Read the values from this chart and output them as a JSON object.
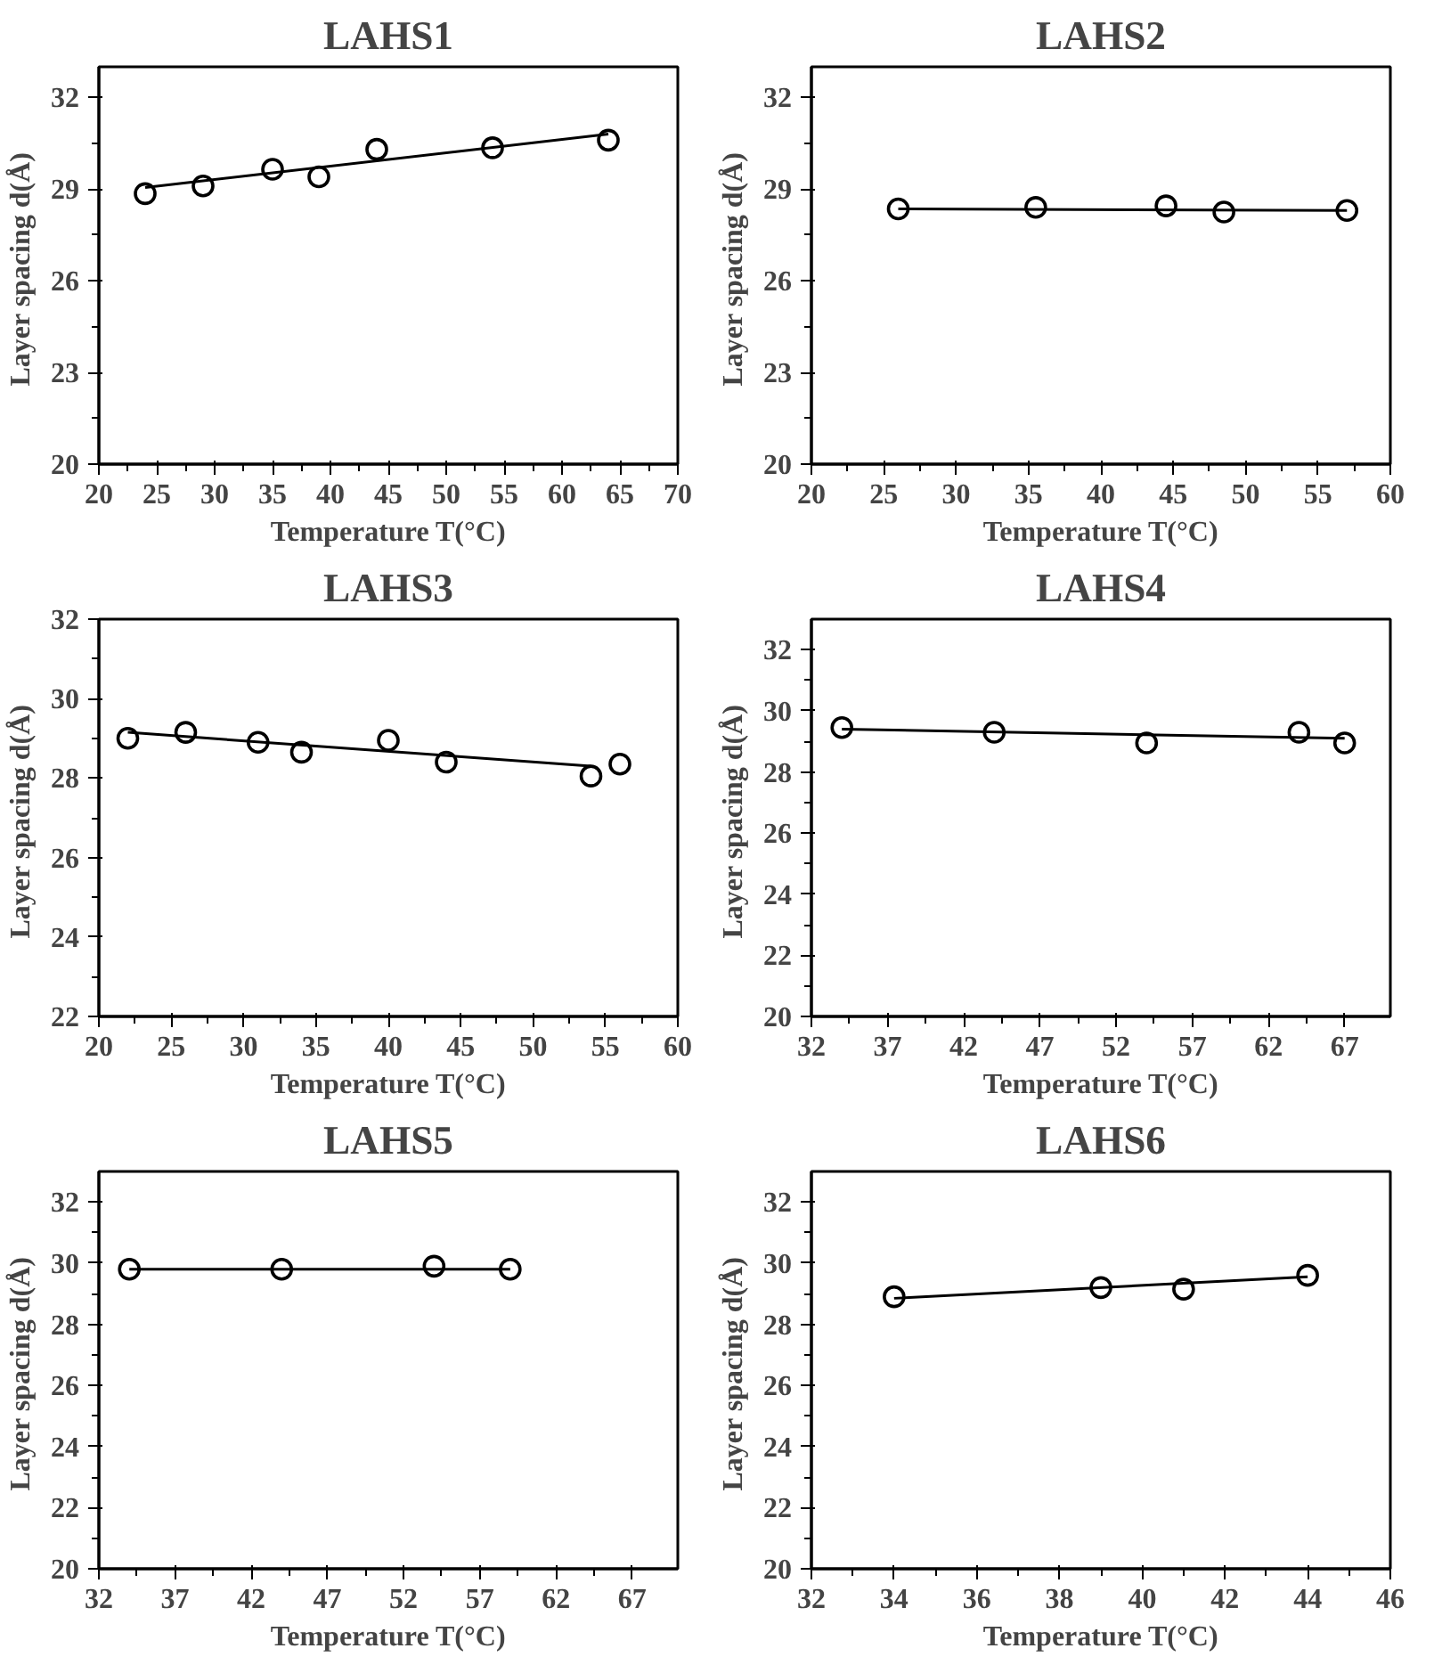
{
  "chart_data": [
    {
      "type": "scatter",
      "title": "LAHS1",
      "xlabel": "Temperature T(°C)",
      "ylabel": "Layer spacing  d(Å)",
      "xlim": [
        20,
        70
      ],
      "xticks": [
        20,
        25,
        30,
        35,
        40,
        45,
        50,
        55,
        60,
        65,
        70
      ],
      "ylim": [
        20,
        33
      ],
      "yticks": [
        20,
        23,
        26,
        29,
        32
      ],
      "grid": false,
      "series": [
        {
          "marker": "circle",
          "color": "#000000",
          "x": [
            24,
            29,
            35,
            39,
            44,
            54,
            64
          ],
          "values": [
            28.85,
            29.1,
            29.65,
            29.4,
            30.3,
            30.35,
            30.6
          ]
        },
        {
          "type": "line",
          "marker": "none",
          "color": "#000000",
          "x": [
            24,
            64
          ],
          "values": [
            29.05,
            30.8
          ]
        }
      ]
    },
    {
      "type": "scatter",
      "title": "LAHS2",
      "xlabel": "Temperature T(°C)",
      "ylabel": "Layer spacing  d(Å)",
      "xlim": [
        20,
        60
      ],
      "xticks": [
        20,
        25,
        30,
        35,
        40,
        45,
        50,
        55,
        60
      ],
      "ylim": [
        20,
        33
      ],
      "yticks": [
        20,
        23,
        26,
        29,
        32
      ],
      "grid": false,
      "series": [
        {
          "marker": "circle",
          "color": "#000000",
          "x": [
            26,
            35.5,
            44.5,
            48.5,
            57
          ],
          "values": [
            28.35,
            28.4,
            28.45,
            28.25,
            28.3
          ]
        },
        {
          "type": "line",
          "marker": "none",
          "color": "#000000",
          "x": [
            26,
            57
          ],
          "values": [
            28.35,
            28.3
          ]
        }
      ]
    },
    {
      "type": "scatter",
      "title": "LAHS3",
      "xlabel": "Temperature T(°C)",
      "ylabel": "Layer spacing  d(Å)",
      "xlim": [
        20,
        60
      ],
      "xticks": [
        20,
        25,
        30,
        35,
        40,
        45,
        50,
        55,
        60
      ],
      "ylim": [
        22,
        32
      ],
      "yticks": [
        22,
        24,
        26,
        28,
        30,
        32
      ],
      "grid": false,
      "series": [
        {
          "marker": "circle",
          "color": "#000000",
          "x": [
            22,
            26,
            31,
            34,
            40,
            44,
            54,
            56
          ],
          "values": [
            29.0,
            29.15,
            28.9,
            28.65,
            28.95,
            28.4,
            28.05,
            28.35
          ]
        },
        {
          "type": "line",
          "marker": "none",
          "color": "#000000",
          "x": [
            22,
            54
          ],
          "values": [
            29.15,
            28.3
          ]
        }
      ]
    },
    {
      "type": "scatter",
      "title": "LAHS4",
      "xlabel": "Temperature T(°C)",
      "ylabel": "Layer spacing  d(Å)",
      "xlim": [
        32,
        70
      ],
      "xticks": [
        32,
        37,
        42,
        47,
        52,
        57,
        62,
        67
      ],
      "ylim": [
        20,
        33
      ],
      "yticks": [
        20,
        22,
        24,
        26,
        28,
        30,
        32
      ],
      "grid": false,
      "series": [
        {
          "marker": "circle",
          "color": "#000000",
          "x": [
            34,
            44,
            54,
            64,
            67
          ],
          "values": [
            29.45,
            29.3,
            28.95,
            29.3,
            28.95
          ]
        },
        {
          "type": "line",
          "marker": "none",
          "color": "#000000",
          "x": [
            34,
            67
          ],
          "values": [
            29.4,
            29.1
          ]
        }
      ]
    },
    {
      "type": "scatter",
      "title": "LAHS5",
      "xlabel": "Temperature T(°C)",
      "ylabel": "Layer spacing  d(Å)",
      "xlim": [
        32,
        70
      ],
      "xticks": [
        32,
        37,
        42,
        47,
        52,
        57,
        62,
        67
      ],
      "ylim": [
        20,
        33
      ],
      "yticks": [
        20,
        22,
        24,
        26,
        28,
        30,
        32
      ],
      "grid": false,
      "series": [
        {
          "marker": "circle",
          "color": "#000000",
          "x": [
            34,
            44,
            54,
            59
          ],
          "values": [
            29.8,
            29.8,
            29.9,
            29.8
          ]
        },
        {
          "type": "line",
          "marker": "none",
          "color": "#000000",
          "x": [
            34,
            59
          ],
          "values": [
            29.8,
            29.8
          ]
        }
      ]
    },
    {
      "type": "scatter",
      "title": "LAHS6",
      "xlabel": "Temperature T(°C)",
      "ylabel": "Layer spacing  d(Å)",
      "xlim": [
        32,
        46
      ],
      "xticks": [
        32,
        34,
        36,
        38,
        40,
        42,
        44,
        46
      ],
      "ylim": [
        20,
        33
      ],
      "yticks": [
        20,
        22,
        24,
        26,
        28,
        30,
        32
      ],
      "grid": false,
      "series": [
        {
          "marker": "circle",
          "color": "#000000",
          "x": [
            34,
            39,
            41,
            44
          ],
          "values": [
            28.9,
            29.2,
            29.15,
            29.6
          ]
        },
        {
          "type": "line",
          "marker": "none",
          "color": "#000000",
          "x": [
            34,
            44
          ],
          "values": [
            28.85,
            29.55
          ]
        }
      ]
    }
  ]
}
